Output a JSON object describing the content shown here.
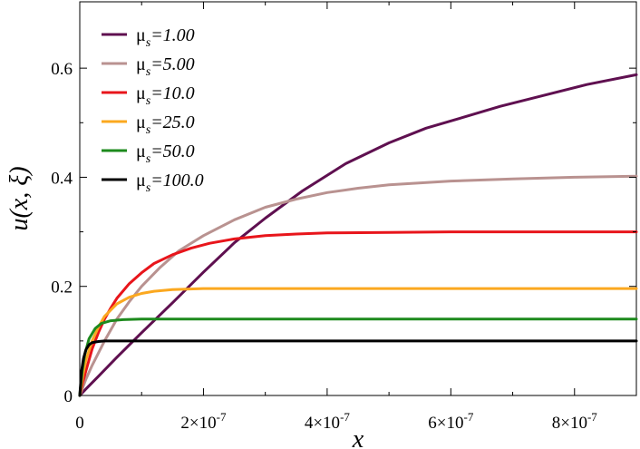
{
  "chart_data": {
    "type": "line",
    "xlabel": "x",
    "ylabel": "u(x, ξ)",
    "xlim": [
      0,
      9e-07
    ],
    "ylim": [
      0,
      0.7
    ],
    "grid": false,
    "legend_position": "top-left",
    "x_ticks": [
      {
        "value": 0,
        "label": "0"
      },
      {
        "value": 2e-07,
        "mantissa": "2×10",
        "exponent": "-7"
      },
      {
        "value": 4e-07,
        "mantissa": "4×10",
        "exponent": "-7"
      },
      {
        "value": 6e-07,
        "mantissa": "6×10",
        "exponent": "-7"
      },
      {
        "value": 8e-07,
        "mantissa": "8×10",
        "exponent": "-7"
      }
    ],
    "y_ticks": [
      {
        "value": 0,
        "label": "0"
      },
      {
        "value": 0.2,
        "label": "0.2"
      },
      {
        "value": 0.4,
        "label": "0.4"
      },
      {
        "value": 0.6,
        "label": "0.6"
      }
    ],
    "series": [
      {
        "name": "μs=1.00",
        "symbol": "μ",
        "subscript": "s",
        "value_text": "=1.00",
        "color": "#5f1050",
        "x": [
          0,
          1e-08,
          3e-08,
          6e-08,
          1e-07,
          1.5e-07,
          2e-07,
          2.5e-07,
          3e-07,
          3.6e-07,
          4.3e-07,
          5e-07,
          5.6e-07,
          6.2e-07,
          6.8e-07,
          7.5e-07,
          8.2e-07,
          9e-07
        ],
        "y": [
          0,
          0.012,
          0.035,
          0.07,
          0.115,
          0.17,
          0.226,
          0.28,
          0.325,
          0.375,
          0.425,
          0.463,
          0.49,
          0.51,
          0.53,
          0.55,
          0.57,
          0.588
        ]
      },
      {
        "name": "μs=5.00",
        "symbol": "μ",
        "subscript": "s",
        "value_text": "=5.00",
        "color": "#b99290",
        "x": [
          0,
          1e-08,
          2e-08,
          4e-08,
          6e-08,
          8e-08,
          1e-07,
          1.3e-07,
          1.6e-07,
          2e-07,
          2.5e-07,
          3e-07,
          3.5e-07,
          4e-07,
          4.5e-07,
          5e-07,
          6e-07,
          7e-07,
          8e-07,
          9e-07
        ],
        "y": [
          0,
          0.03,
          0.055,
          0.1,
          0.14,
          0.172,
          0.2,
          0.235,
          0.265,
          0.293,
          0.322,
          0.345,
          0.36,
          0.372,
          0.38,
          0.386,
          0.393,
          0.397,
          0.4,
          0.402
        ]
      },
      {
        "name": "μs=10.0",
        "symbol": "μ",
        "subscript": "s",
        "value_text": "=10.0",
        "color": "#e8151b",
        "x": [
          0,
          5e-09,
          1e-08,
          2e-08,
          3e-08,
          4e-08,
          5e-08,
          6e-08,
          8e-08,
          1e-07,
          1.2e-07,
          1.5e-07,
          1.8e-07,
          2.1e-07,
          2.5e-07,
          3e-07,
          3.5e-07,
          4e-07,
          5e-07,
          6e-07,
          9e-07
        ],
        "y": [
          0,
          0.025,
          0.045,
          0.085,
          0.115,
          0.14,
          0.16,
          0.178,
          0.205,
          0.225,
          0.242,
          0.258,
          0.27,
          0.279,
          0.287,
          0.293,
          0.296,
          0.298,
          0.299,
          0.3,
          0.3
        ]
      },
      {
        "name": "μs=25.0",
        "symbol": "μ",
        "subscript": "s",
        "value_text": "=25.0",
        "color": "#fba81f",
        "x": [
          0,
          5e-09,
          1e-08,
          2e-08,
          3e-08,
          4e-08,
          6e-08,
          8e-08,
          1e-07,
          1.2e-07,
          1.5e-07,
          2e-07,
          3e-07,
          9e-07
        ],
        "y": [
          0,
          0.038,
          0.065,
          0.1,
          0.125,
          0.145,
          0.168,
          0.18,
          0.187,
          0.191,
          0.194,
          0.196,
          0.196,
          0.196
        ]
      },
      {
        "name": "μs=50.0",
        "symbol": "μ",
        "subscript": "s",
        "value_text": "=50.0",
        "color": "#1d8a1d",
        "x": [
          0,
          4e-09,
          8e-09,
          1.5e-08,
          2.5e-08,
          3.5e-08,
          5e-08,
          7e-08,
          1e-07,
          1.5e-07,
          9e-07
        ],
        "y": [
          0,
          0.045,
          0.075,
          0.104,
          0.123,
          0.132,
          0.137,
          0.139,
          0.14,
          0.14,
          0.14
        ]
      },
      {
        "name": "μs=100.0",
        "symbol": "μ",
        "subscript": "s",
        "value_text": "=100.0",
        "color": "#000000",
        "x": [
          0,
          3e-09,
          6e-09,
          1e-08,
          1.5e-08,
          2e-08,
          3e-08,
          4e-08,
          6e-08,
          9e-07
        ],
        "y": [
          0,
          0.045,
          0.068,
          0.084,
          0.093,
          0.097,
          0.099,
          0.1,
          0.1,
          0.1
        ]
      }
    ]
  }
}
